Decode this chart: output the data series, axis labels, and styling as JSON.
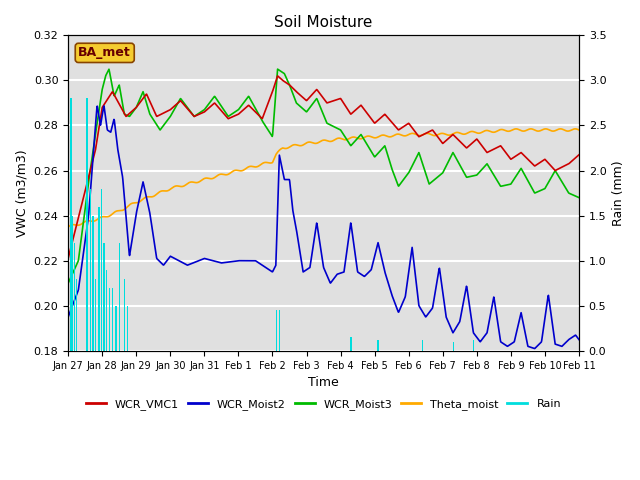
{
  "title": "Soil Moisture",
  "xlabel": "Time",
  "ylabel_left": "VWC (m3/m3)",
  "ylabel_right": "Rain (mm)",
  "ylim_left": [
    0.18,
    0.32
  ],
  "ylim_right": [
    0.0,
    3.5
  ],
  "yticks_left": [
    0.18,
    0.2,
    0.22,
    0.24,
    0.26,
    0.28,
    0.3,
    0.32
  ],
  "yticks_right": [
    0.0,
    0.5,
    1.0,
    1.5,
    2.0,
    2.5,
    3.0,
    3.5
  ],
  "xtick_labels": [
    "Jan 27",
    "Jan 28",
    "Jan 29",
    "Jan 30",
    "Jan 31",
    "Feb 1",
    "Feb 2",
    "Feb 3",
    "Feb 4",
    "Feb 5",
    "Feb 6",
    "Feb 7",
    "Feb 8",
    "Feb 9",
    "Feb 10",
    "Feb 11"
  ],
  "colors": {
    "WCR_VMC1": "#cc0000",
    "WCR_Moist2": "#0000cc",
    "WCR_Moist3": "#00bb00",
    "Theta_moist": "#ffaa00",
    "Rain": "#00dddd"
  },
  "bg_color": "#e0e0e0",
  "label_box": "BA_met",
  "grid_color": "#f0f0f0"
}
